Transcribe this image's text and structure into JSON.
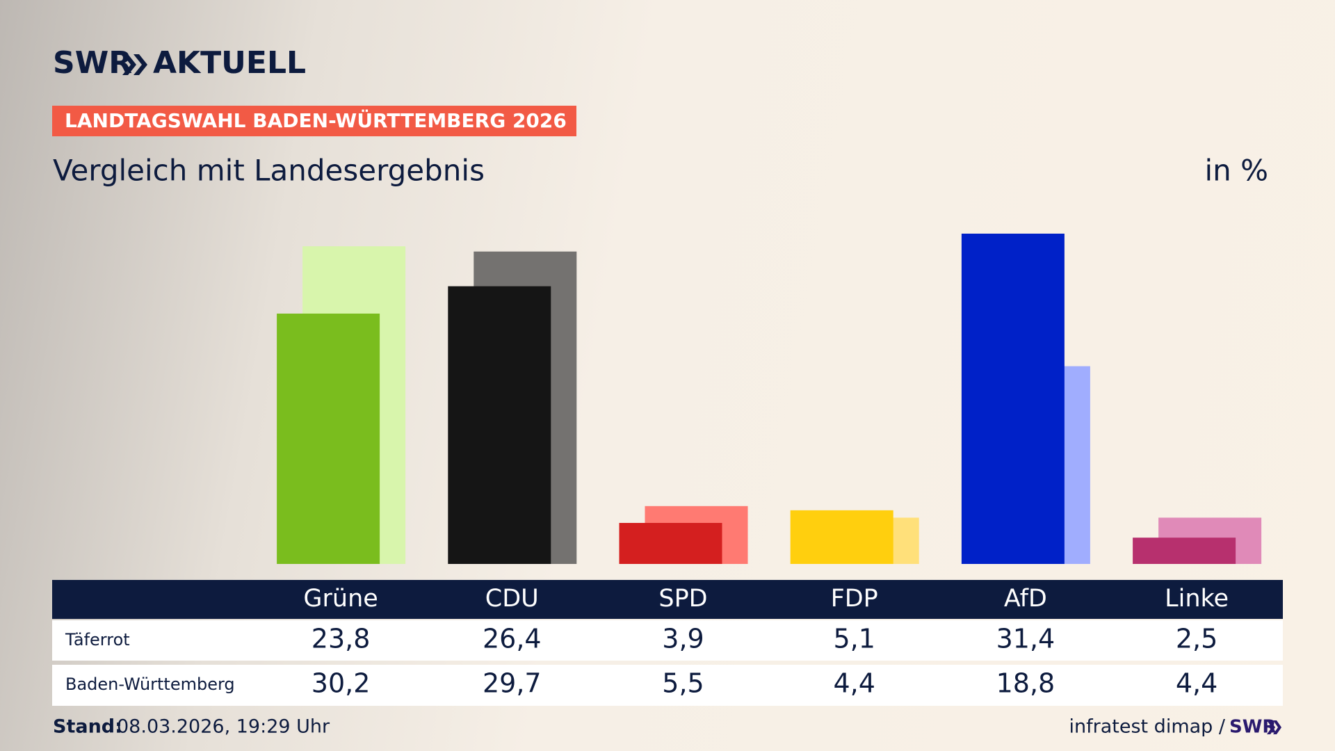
{
  "header": {
    "logo": "SWR",
    "logo_suffix": "AKTUELL",
    "kicker": "LANDTAGSWAHL BADEN-WÜRTTEMBERG 2026"
  },
  "chart_data": {
    "type": "bar",
    "title": "Vergleich mit Landesergebnis",
    "unit": "in %",
    "categories": [
      "Grüne",
      "CDU",
      "SPD",
      "FDP",
      "AfD",
      "Linke"
    ],
    "series": [
      {
        "name": "Täferrot",
        "values": [
          23.8,
          26.4,
          3.9,
          5.1,
          31.4,
          2.5
        ],
        "value_labels": [
          "23,8",
          "26,4",
          "3,9",
          "5,1",
          "31,4",
          "2,5"
        ],
        "colors": [
          "#7abd1e",
          "#151515",
          "#d41f1f",
          "#ffcf0e",
          "#0021c8",
          "#b7306e"
        ]
      },
      {
        "name": "Baden-Württemberg",
        "values": [
          30.2,
          29.7,
          5.5,
          4.4,
          18.8,
          4.4
        ],
        "value_labels": [
          "30,2",
          "29,7",
          "5,5",
          "4,4",
          "18,8",
          "4,4"
        ],
        "colors": [
          "#d8f5ac",
          "#747270",
          "#ff7a72",
          "#ffe07a",
          "#a0adfe",
          "#e08ab8"
        ]
      }
    ]
  },
  "footer": {
    "stand_label": "Stand:",
    "stand": "08.03.2026, 19:29 Uhr",
    "source": "infratest dimap /",
    "source_logo": "SWR"
  }
}
